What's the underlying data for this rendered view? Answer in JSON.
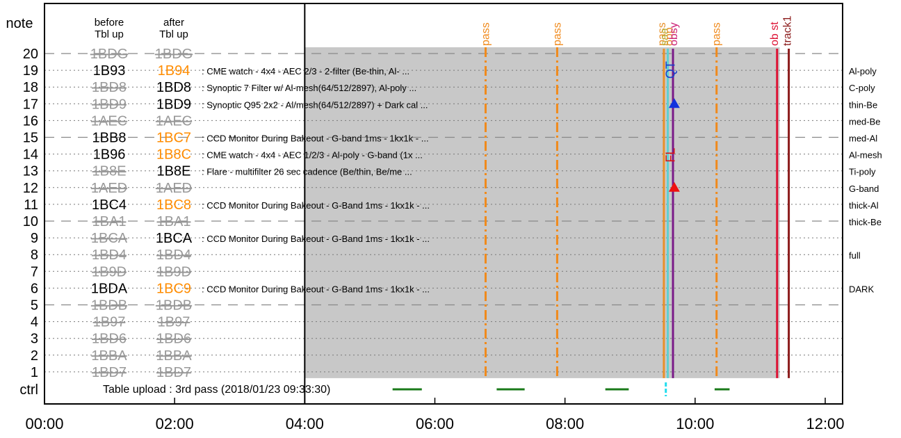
{
  "chart_data": {
    "type": "timeline",
    "title": "",
    "y_axis_label": "note",
    "bottom_row_label": "ctrl",
    "col_header_before": [
      "before",
      "Tbl up"
    ],
    "col_header_after": [
      "after",
      "Tbl up"
    ],
    "x_ticks": [
      "00:00",
      "02:00",
      "04:00",
      "06:00",
      "08:00",
      "10:00",
      "12:00"
    ],
    "x_range_hours": [
      0,
      12
    ],
    "table_upload_time_hours": 4.0,
    "shaded_span_hours": [
      4.0,
      11.3
    ],
    "rows": [
      {
        "n": "20",
        "before": "1BDG",
        "after": "1BDG",
        "before_state": "struck",
        "after_state": "struck",
        "desc": "",
        "filter": ""
      },
      {
        "n": "19",
        "before": "1B93",
        "after": "1B94",
        "before_state": "normal",
        "after_state": "changed",
        "desc": ": CME watch - 4x4 - AEC 2/3 - 2-filter (Be-thin, Al- ...",
        "filter": "Al-poly"
      },
      {
        "n": "18",
        "before": "1BD8",
        "after": "1BD8",
        "before_state": "struck",
        "after_state": "normal",
        "desc": ": Synoptic 7 Filter w/ Al-mesh(64/512/2897), Al-poly ...",
        "filter": "C-poly"
      },
      {
        "n": "17",
        "before": "1BD9",
        "after": "1BD9",
        "before_state": "struck",
        "after_state": "normal",
        "desc": ": Synoptic Q95 2x2 - Al/mesh(64/512/2897) + Dark cal ...",
        "filter": "thin-Be"
      },
      {
        "n": "16",
        "before": "1AEC",
        "after": "1AEC",
        "before_state": "struck",
        "after_state": "struck",
        "desc": "",
        "filter": "med-Be"
      },
      {
        "n": "15",
        "before": "1BB8",
        "after": "1BC7",
        "before_state": "normal",
        "after_state": "changed",
        "desc": ": CCD Monitor During Bakeout - G-band 1ms - 1kx1k - ...",
        "filter": "med-Al"
      },
      {
        "n": "14",
        "before": "1B96",
        "after": "1B8C",
        "before_state": "normal",
        "after_state": "changed",
        "desc": ": CME watch - 4x4 - AEC 1/2/3 - Al-poly - G-band (1x ...",
        "filter": "Al-mesh"
      },
      {
        "n": "13",
        "before": "1B8E",
        "after": "1B8E",
        "before_state": "struck",
        "after_state": "normal",
        "desc": ": Flare - multifilter 26 sec cadence (Be/thin, Be/me ...",
        "filter": "Ti-poly"
      },
      {
        "n": "12",
        "before": "1AED",
        "after": "1AED",
        "before_state": "struck",
        "after_state": "struck",
        "desc": "",
        "filter": "G-band"
      },
      {
        "n": "11",
        "before": "1BC4",
        "after": "1BC8",
        "before_state": "normal",
        "after_state": "changed",
        "desc": ": CCD Monitor During Bakeout - G-Band 1ms - 1kx1k - ...",
        "filter": "thick-Al"
      },
      {
        "n": "10",
        "before": "1BA1",
        "after": "1BA1",
        "before_state": "struck",
        "after_state": "struck",
        "desc": "",
        "filter": "thick-Be"
      },
      {
        "n": "9",
        "before": "1BCA",
        "after": "1BCA",
        "before_state": "struck",
        "after_state": "normal",
        "desc": ": CCD Monitor During Bakeout - G-Band 1ms - 1kx1k - ...",
        "filter": ""
      },
      {
        "n": "8",
        "before": "1BD4",
        "after": "1BD4",
        "before_state": "struck",
        "after_state": "struck",
        "desc": "",
        "filter": "full"
      },
      {
        "n": "7",
        "before": "1B9D",
        "after": "1B9D",
        "before_state": "struck",
        "after_state": "struck",
        "desc": "",
        "filter": ""
      },
      {
        "n": "6",
        "before": "1BDA",
        "after": "1BC9",
        "before_state": "normal",
        "after_state": "changed",
        "desc": ": CCD Monitor During Bakeout - G-Band 1ms - 1kx1k - ...",
        "filter": "DARK"
      },
      {
        "n": "5",
        "before": "1BDB",
        "after": "1BDB",
        "before_state": "struck",
        "after_state": "struck",
        "desc": "",
        "filter": ""
      },
      {
        "n": "4",
        "before": "1B97",
        "after": "1B97",
        "before_state": "struck",
        "after_state": "struck",
        "desc": "",
        "filter": ""
      },
      {
        "n": "3",
        "before": "1BD6",
        "after": "1BD6",
        "before_state": "struck",
        "after_state": "struck",
        "desc": "",
        "filter": ""
      },
      {
        "n": "2",
        "before": "1BBA",
        "after": "1BBA",
        "before_state": "struck",
        "after_state": "struck",
        "desc": "",
        "filter": ""
      },
      {
        "n": "1",
        "before": "1BD7",
        "after": "1BD7",
        "before_state": "struck",
        "after_state": "struck",
        "desc": "",
        "filter": ""
      }
    ],
    "pass_lines_hours": [
      6.78,
      7.88,
      10.33
    ],
    "pass_label": "pass",
    "event_labels": [
      {
        "text": "pass",
        "hours": 9.49,
        "color": "#e8902a"
      },
      {
        "text": "saa",
        "hours": 9.53,
        "color": "#b4b43c"
      },
      {
        "text": "opp",
        "hours": 9.6,
        "color": "#e8902a"
      },
      {
        "text": "obsy",
        "hours": 9.67,
        "color": "#cc2277"
      },
      {
        "text": "ob st",
        "hours": 11.22,
        "color": "#dd1133"
      },
      {
        "text": "track1",
        "hours": 11.42,
        "color": "#8b1a1a"
      }
    ],
    "vertical_lines": [
      {
        "hours": 9.52,
        "color": "#e8902a"
      },
      {
        "hours": 9.58,
        "color": "#5fd0d0"
      },
      {
        "hours": 9.66,
        "color": "#7a1a88"
      },
      {
        "hours": 11.26,
        "color": "#dd1133"
      },
      {
        "hours": 11.44,
        "color": "#8b1a1a"
      }
    ],
    "markers": [
      {
        "text": "QT",
        "color": "#1a3fcc",
        "row": 19
      },
      {
        "text": "FL",
        "color": "#dd1111",
        "row": 14
      }
    ],
    "triangles": [
      {
        "color": "#1133dd",
        "row": 17,
        "hours": 9.68
      },
      {
        "color": "#ee1111",
        "row": 12,
        "hours": 9.68
      }
    ],
    "ctrl_text": "Table upload : 3rd pass (2018/01/23 09:33:30)",
    "ctrl_segments_hours": [
      [
        5.35,
        5.8
      ],
      [
        6.95,
        7.38
      ],
      [
        8.62,
        8.98
      ],
      [
        10.3,
        10.53
      ]
    ],
    "ctrl_cyan_hours": 9.55,
    "colors": {
      "changed": "#ff8c00",
      "struck": "#999999",
      "shade": "#c8c8c8",
      "ctrl_seg": "#1a7a1a"
    }
  }
}
